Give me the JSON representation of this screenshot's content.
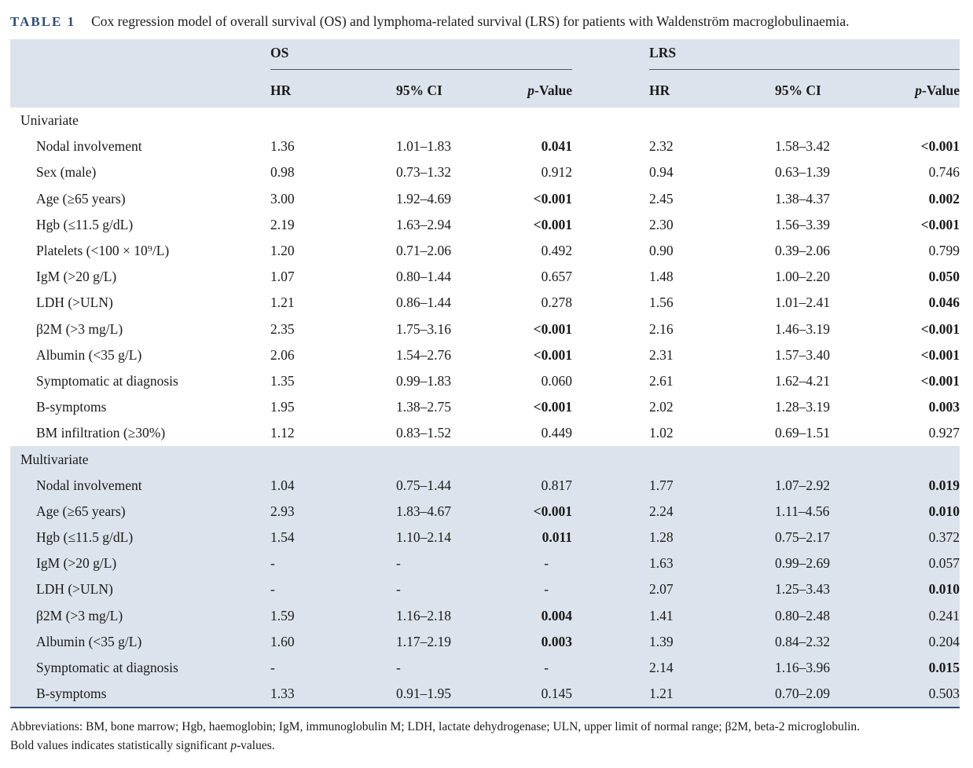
{
  "caption": {
    "label": "TABLE 1",
    "text": "Cox regression model of overall survival (OS) and lymphoma-related survival (LRS) for patients with Waldenström macroglobulinaemia."
  },
  "header": {
    "group1": "OS",
    "group2": "LRS",
    "hr": "HR",
    "ci": "95% CI",
    "p_prefix": "p",
    "p_suffix": "-Value"
  },
  "sections": [
    {
      "title": "Univariate",
      "shaded": false,
      "rows": [
        {
          "label": "Nodal involvement",
          "os_hr": "1.36",
          "os_ci": "1.01–1.83",
          "os_p": "0.041",
          "os_p_bold": true,
          "lrs_hr": "2.32",
          "lrs_ci": "1.58–3.42",
          "lrs_p": "<0.001",
          "lrs_p_bold": true
        },
        {
          "label": "Sex (male)",
          "os_hr": "0.98",
          "os_ci": "0.73–1.32",
          "os_p": "0.912",
          "os_p_bold": false,
          "lrs_hr": "0.94",
          "lrs_ci": "0.63–1.39",
          "lrs_p": "0.746",
          "lrs_p_bold": false
        },
        {
          "label": "Age (≥65 years)",
          "os_hr": "3.00",
          "os_ci": "1.92–4.69",
          "os_p": "<0.001",
          "os_p_bold": true,
          "lrs_hr": "2.45",
          "lrs_ci": "1.38–4.37",
          "lrs_p": "0.002",
          "lrs_p_bold": true
        },
        {
          "label": "Hgb (≤11.5 g/dL)",
          "os_hr": "2.19",
          "os_ci": "1.63–2.94",
          "os_p": "<0.001",
          "os_p_bold": true,
          "lrs_hr": "2.30",
          "lrs_ci": "1.56–3.39",
          "lrs_p": "<0.001",
          "lrs_p_bold": true
        },
        {
          "label": "Platelets (<100 × 10⁹/L)",
          "os_hr": "1.20",
          "os_ci": "0.71–2.06",
          "os_p": "0.492",
          "os_p_bold": false,
          "lrs_hr": "0.90",
          "lrs_ci": "0.39–2.06",
          "lrs_p": "0.799",
          "lrs_p_bold": false
        },
        {
          "label": "IgM (>20 g/L)",
          "os_hr": "1.07",
          "os_ci": "0.80–1.44",
          "os_p": "0.657",
          "os_p_bold": false,
          "lrs_hr": "1.48",
          "lrs_ci": "1.00–2.20",
          "lrs_p": "0.050",
          "lrs_p_bold": true
        },
        {
          "label": "LDH (>ULN)",
          "os_hr": "1.21",
          "os_ci": "0.86–1.44",
          "os_p": "0.278",
          "os_p_bold": false,
          "lrs_hr": "1.56",
          "lrs_ci": "1.01–2.41",
          "lrs_p": "0.046",
          "lrs_p_bold": true
        },
        {
          "label": "β2M (>3 mg/L)",
          "os_hr": "2.35",
          "os_ci": "1.75–3.16",
          "os_p": "<0.001",
          "os_p_bold": true,
          "lrs_hr": "2.16",
          "lrs_ci": "1.46–3.19",
          "lrs_p": "<0.001",
          "lrs_p_bold": true
        },
        {
          "label": "Albumin (<35 g/L)",
          "os_hr": "2.06",
          "os_ci": "1.54–2.76",
          "os_p": "<0.001",
          "os_p_bold": true,
          "lrs_hr": "2.31",
          "lrs_ci": "1.57–3.40",
          "lrs_p": "<0.001",
          "lrs_p_bold": true
        },
        {
          "label": "Symptomatic at diagnosis",
          "os_hr": "1.35",
          "os_ci": "0.99–1.83",
          "os_p": "0.060",
          "os_p_bold": false,
          "lrs_hr": "2.61",
          "lrs_ci": "1.62–4.21",
          "lrs_p": "<0.001",
          "lrs_p_bold": true
        },
        {
          "label": "B-symptoms",
          "os_hr": "1.95",
          "os_ci": "1.38–2.75",
          "os_p": "<0.001",
          "os_p_bold": true,
          "lrs_hr": "2.02",
          "lrs_ci": "1.28–3.19",
          "lrs_p": "0.003",
          "lrs_p_bold": true
        },
        {
          "label": "BM infiltration (≥30%)",
          "os_hr": "1.12",
          "os_ci": "0.83–1.52",
          "os_p": "0.449",
          "os_p_bold": false,
          "lrs_hr": "1.02",
          "lrs_ci": "0.69–1.51",
          "lrs_p": "0.927",
          "lrs_p_bold": false
        }
      ]
    },
    {
      "title": "Multivariate",
      "shaded": true,
      "rows": [
        {
          "label": "Nodal involvement",
          "os_hr": "1.04",
          "os_ci": "0.75–1.44",
          "os_p": "0.817",
          "os_p_bold": false,
          "lrs_hr": "1.77",
          "lrs_ci": "1.07–2.92",
          "lrs_p": "0.019",
          "lrs_p_bold": true
        },
        {
          "label": "Age (≥65 years)",
          "os_hr": "2.93",
          "os_ci": "1.83–4.67",
          "os_p": "<0.001",
          "os_p_bold": true,
          "lrs_hr": "2.24",
          "lrs_ci": "1.11–4.56",
          "lrs_p": "0.010",
          "lrs_p_bold": true
        },
        {
          "label": "Hgb (≤11.5 g/dL)",
          "os_hr": "1.54",
          "os_ci": "1.10–2.14",
          "os_p": "0.011",
          "os_p_bold": true,
          "lrs_hr": "1.28",
          "lrs_ci": "0.75–2.17",
          "lrs_p": "0.372",
          "lrs_p_bold": false
        },
        {
          "label": "IgM (>20 g/L)",
          "os_hr": "-",
          "os_ci": "-",
          "os_p": "-",
          "os_p_bold": false,
          "lrs_hr": "1.63",
          "lrs_ci": "0.99–2.69",
          "lrs_p": "0.057",
          "lrs_p_bold": false
        },
        {
          "label": "LDH (>ULN)",
          "os_hr": "-",
          "os_ci": "-",
          "os_p": "-",
          "os_p_bold": false,
          "lrs_hr": "2.07",
          "lrs_ci": "1.25–3.43",
          "lrs_p": "0.010",
          "lrs_p_bold": true
        },
        {
          "label": "β2M (>3 mg/L)",
          "os_hr": "1.59",
          "os_ci": "1.16–2.18",
          "os_p": "0.004",
          "os_p_bold": true,
          "lrs_hr": "1.41",
          "lrs_ci": "0.80–2.48",
          "lrs_p": "0.241",
          "lrs_p_bold": false
        },
        {
          "label": "Albumin (<35 g/L)",
          "os_hr": "1.60",
          "os_ci": "1.17–2.19",
          "os_p": "0.003",
          "os_p_bold": true,
          "lrs_hr": "1.39",
          "lrs_ci": "0.84–2.32",
          "lrs_p": "0.204",
          "lrs_p_bold": false
        },
        {
          "label": "Symptomatic at diagnosis",
          "os_hr": "-",
          "os_ci": "-",
          "os_p": "-",
          "os_p_bold": false,
          "lrs_hr": "2.14",
          "lrs_ci": "1.16–3.96",
          "lrs_p": "0.015",
          "lrs_p_bold": true
        },
        {
          "label": "B-symptoms",
          "os_hr": "1.33",
          "os_ci": "0.91–1.95",
          "os_p": "0.145",
          "os_p_bold": false,
          "lrs_hr": "1.21",
          "lrs_ci": "0.70–2.09",
          "lrs_p": "0.503",
          "lrs_p_bold": false
        }
      ]
    }
  ],
  "footnote": {
    "abbreviations": "Abbreviations: BM, bone marrow; Hgb, haemoglobin; IgM, immunoglobulin M; LDH, lactate dehydrogenase; ULN, upper limit of normal range; β2M, beta-2 microglobulin.",
    "bold_note_prefix": "Bold values indicates statistically significant ",
    "bold_note_italic": "p",
    "bold_note_suffix": "-values."
  },
  "colors": {
    "header_fill": "#dde3ec",
    "caption_label": "#2f4d74",
    "bottom_rule": "#2f4d74"
  }
}
